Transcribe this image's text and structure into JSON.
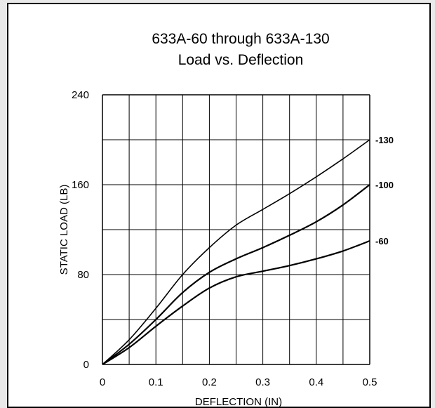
{
  "chart_data": {
    "type": "line",
    "title": "633A-60 through 633A-130",
    "subtitle": "Load vs. Deflection",
    "xlabel": "DEFLECTION (IN)",
    "ylabel": "STATIC LOAD (LB)",
    "xlim": [
      0,
      0.5
    ],
    "ylim": [
      0,
      240
    ],
    "xticks": [
      "0",
      "0.1",
      "0.2",
      "0.3",
      "0.4",
      "0.5"
    ],
    "yticks": [
      "0",
      "80",
      "160",
      "240"
    ],
    "grid": true,
    "series": [
      {
        "name": "-130",
        "x": [
          0,
          0.05,
          0.1,
          0.15,
          0.2,
          0.25,
          0.3,
          0.35,
          0.4,
          0.45,
          0.5
        ],
        "y": [
          0,
          22,
          50,
          80,
          104,
          124,
          138,
          152,
          167,
          183,
          200
        ]
      },
      {
        "name": "-100",
        "x": [
          0,
          0.05,
          0.1,
          0.15,
          0.2,
          0.25,
          0.3,
          0.35,
          0.4,
          0.45,
          0.5
        ],
        "y": [
          0,
          18,
          40,
          64,
          82,
          94,
          104,
          115,
          127,
          142,
          160
        ]
      },
      {
        "name": "-60",
        "x": [
          0,
          0.05,
          0.1,
          0.15,
          0.2,
          0.25,
          0.3,
          0.35,
          0.4,
          0.45,
          0.5
        ],
        "y": [
          0,
          15,
          34,
          52,
          68,
          78,
          83,
          88,
          94,
          101,
          110
        ]
      }
    ],
    "colors": {
      "line": "#000000",
      "grid": "#000000",
      "background": "#ffffff"
    }
  }
}
